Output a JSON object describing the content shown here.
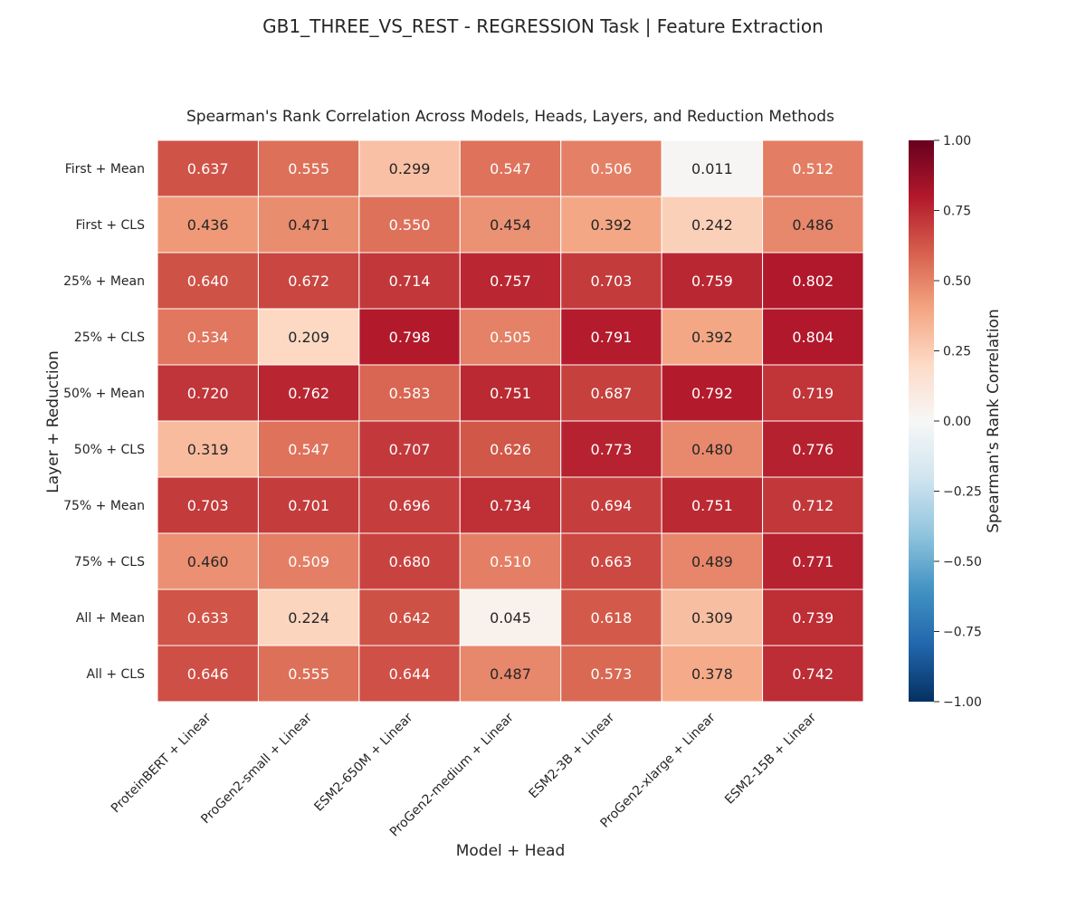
{
  "suptitle": "GB1_THREE_VS_REST - REGRESSION Task | Feature Extraction",
  "chart_data": {
    "type": "heatmap",
    "title": "Spearman's Rank Correlation Across Models, Heads, Layers, and Reduction Methods",
    "xlabel": "Model + Head",
    "ylabel": "Layer + Reduction",
    "columns": [
      "ProteinBERT + Linear",
      "ProGen2-small + Linear",
      "ESM2-650M + Linear",
      "ProGen2-medium + Linear",
      "ESM2-3B + Linear",
      "ProGen2-xlarge + Linear",
      "ESM2-15B + Linear"
    ],
    "rows": [
      "First + Mean",
      "First + CLS",
      "25% + Mean",
      "25% + CLS",
      "50% + Mean",
      "50% + CLS",
      "75% + Mean",
      "75% + CLS",
      "All + Mean",
      "All + CLS"
    ],
    "values": [
      [
        0.637,
        0.555,
        0.299,
        0.547,
        0.506,
        0.011,
        0.512
      ],
      [
        0.436,
        0.471,
        0.55,
        0.454,
        0.392,
        0.242,
        0.486
      ],
      [
        0.64,
        0.672,
        0.714,
        0.757,
        0.703,
        0.759,
        0.802
      ],
      [
        0.534,
        0.209,
        0.798,
        0.505,
        0.791,
        0.392,
        0.804
      ],
      [
        0.72,
        0.762,
        0.583,
        0.751,
        0.687,
        0.792,
        0.719
      ],
      [
        0.319,
        0.547,
        0.707,
        0.626,
        0.773,
        0.48,
        0.776
      ],
      [
        0.703,
        0.701,
        0.696,
        0.734,
        0.694,
        0.751,
        0.712
      ],
      [
        0.46,
        0.509,
        0.68,
        0.51,
        0.663,
        0.489,
        0.771
      ],
      [
        0.633,
        0.224,
        0.642,
        0.045,
        0.618,
        0.309,
        0.739
      ],
      [
        0.646,
        0.555,
        0.644,
        0.487,
        0.573,
        0.378,
        0.742
      ]
    ],
    "vmin": -1.0,
    "vmax": 1.0,
    "colormap": "RdBu_r",
    "colorbar": {
      "label": "Spearman's Rank Correlation",
      "ticks": [
        "1.00",
        "0.75",
        "0.50",
        "0.25",
        "0.00",
        "−0.25",
        "−0.50",
        "−0.75",
        "−1.00"
      ],
      "tick_values": [
        1.0,
        0.75,
        0.5,
        0.25,
        0.0,
        -0.25,
        -0.5,
        -0.75,
        -1.0
      ],
      "placement": "right"
    },
    "annotation_format": "3 decimals"
  }
}
